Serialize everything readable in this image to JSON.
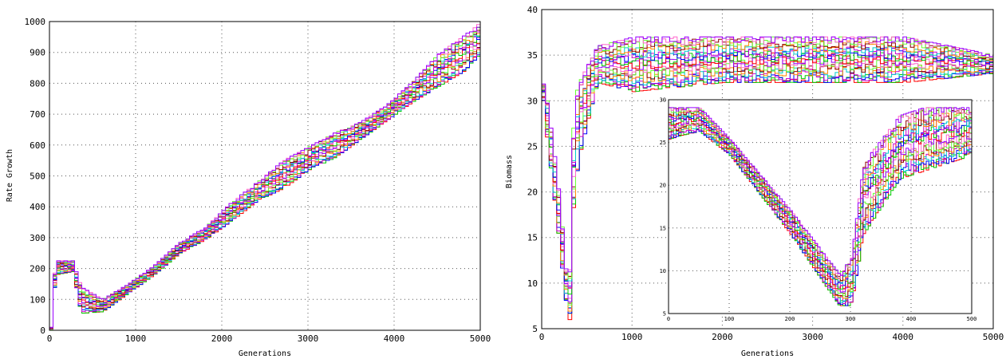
{
  "chart_data": [
    {
      "id": "left",
      "type": "line",
      "xlabel": "Generations",
      "ylabel": "Rate Growth",
      "xlim": [
        0,
        5000
      ],
      "ylim": [
        0,
        1000
      ],
      "xticks": [
        "0",
        "1000",
        "2000",
        "3000",
        "4000",
        "5000"
      ],
      "yticks": [
        "0",
        "100",
        "200",
        "300",
        "400",
        "500",
        "600",
        "700",
        "800",
        "900",
        "1000"
      ],
      "grid": true,
      "legend": "none",
      "series_count": 20,
      "envelope": {
        "x": [
          0,
          20,
          60,
          250,
          350,
          600,
          900,
          1200,
          1500,
          1800,
          2100,
          2400,
          2700,
          3000,
          3300,
          3600,
          3900,
          4200,
          4500,
          4800,
          5000
        ],
        "low": [
          0,
          90,
          180,
          190,
          55,
          60,
          120,
          180,
          250,
          295,
          355,
          420,
          460,
          520,
          560,
          620,
          680,
          740,
          790,
          840,
          900
        ],
        "high": [
          10,
          140,
          225,
          225,
          140,
          100,
          150,
          210,
          285,
          335,
          415,
          480,
          550,
          595,
          640,
          675,
          730,
          805,
          895,
          955,
          1000
        ]
      },
      "colors": [
        "#ff0000",
        "#00cc00",
        "#0000ff",
        "#cc00cc",
        "#00cccc",
        "#ff8800",
        "#8b0000",
        "#66ff33",
        "#ff66cc",
        "#9900ff"
      ]
    },
    {
      "id": "right",
      "type": "line",
      "xlabel": "Generations",
      "ylabel": "Biomass",
      "xlim": [
        0,
        5000
      ],
      "ylim": [
        5,
        40
      ],
      "xticks": [
        "0",
        "1000",
        "2000",
        "3000",
        "4000",
        "5000"
      ],
      "yticks": [
        "5",
        "10",
        "15",
        "20",
        "25",
        "30",
        "35",
        "40"
      ],
      "grid": true,
      "legend": "none",
      "series_count": 20,
      "envelope": {
        "x": [
          0,
          30,
          150,
          270,
          300,
          340,
          400,
          600,
          1000,
          2000,
          3000,
          4000,
          5000
        ],
        "low": [
          30,
          27,
          17,
          6,
          6,
          20,
          24,
          32,
          31,
          32,
          32,
          32,
          33
        ],
        "high": [
          32,
          31,
          22,
          10,
          12,
          30,
          32,
          36,
          37,
          37,
          37,
          37,
          35
        ]
      },
      "inset": {
        "xlim": [
          0,
          500
        ],
        "ylim": [
          5,
          32
        ],
        "xticks": [
          "0",
          "100",
          "200",
          "300",
          "400",
          "500"
        ],
        "yticks": [
          "5",
          "10",
          "15",
          "20",
          "25",
          "30"
        ],
        "envelope": {
          "x": [
            0,
            20,
            50,
            100,
            200,
            280,
            300,
            320,
            380,
            420,
            500
          ],
          "low": [
            27,
            27.5,
            28,
            25,
            15,
            6,
            6,
            15,
            22,
            23,
            25
          ],
          "high": [
            31,
            31,
            31,
            27,
            18,
            10,
            12,
            24,
            30,
            31,
            31
          ]
        }
      }
    }
  ]
}
